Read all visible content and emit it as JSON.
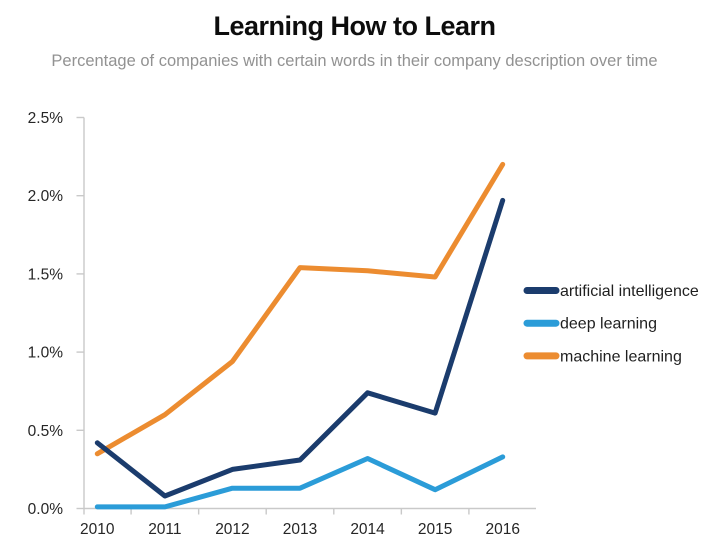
{
  "page": {
    "title": "Learning How to Learn",
    "subtitle": "Percentage of companies with certain words in their company description over time"
  },
  "chart_data": {
    "type": "line",
    "title": "Learning How to Learn",
    "subtitle": "Percentage of companies with certain words in their company description over time",
    "x": [
      "2010",
      "2011",
      "2012",
      "2013",
      "2014",
      "2015",
      "2016"
    ],
    "series": [
      {
        "name": "artificial intelligence",
        "color": "#1b3c6d",
        "values": [
          0.42,
          0.08,
          0.25,
          0.31,
          0.74,
          0.61,
          1.97
        ]
      },
      {
        "name": "deep learning",
        "color": "#2b9cd8",
        "values": [
          0.01,
          0.01,
          0.13,
          0.13,
          0.32,
          0.12,
          0.33
        ]
      },
      {
        "name": "machine learning",
        "color": "#ec8c30",
        "values": [
          0.35,
          0.6,
          0.94,
          1.54,
          1.52,
          1.48,
          2.2
        ]
      }
    ],
    "xlabel": "",
    "ylabel": "",
    "ylim": [
      0,
      2.5
    ],
    "y_ticks": [
      0.0,
      0.5,
      1.0,
      1.5,
      2.0,
      2.5
    ],
    "y_tick_labels": [
      "0.0%",
      "0.5%",
      "1.0%",
      "1.5%",
      "2.0%",
      "2.5%"
    ],
    "grid": false,
    "legend_position": "right",
    "style": {
      "axis_color": "#c9c9c9",
      "tick_label_color": "#262626",
      "legend_text_color": "#1f1f1f",
      "line_width": 5,
      "draw_order": [
        "machine learning",
        "deep learning",
        "artificial intelligence"
      ]
    }
  }
}
